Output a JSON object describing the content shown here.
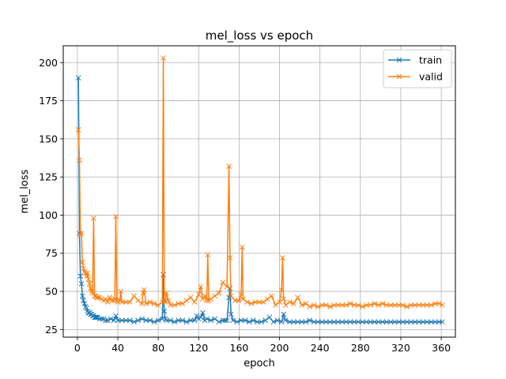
{
  "chart_data": {
    "type": "line",
    "title": "mel_loss vs epoch",
    "xlabel": "epoch",
    "ylabel": "mel_loss",
    "xlim": [
      -14,
      374
    ],
    "ylim": [
      20,
      211
    ],
    "xticks": [
      0,
      40,
      80,
      120,
      160,
      200,
      240,
      280,
      320,
      360
    ],
    "yticks": [
      25,
      50,
      75,
      100,
      125,
      150,
      175,
      200
    ],
    "grid": true,
    "legend": "top-right",
    "marker": "x",
    "series": [
      {
        "name": "train",
        "color": "#1f77b4",
        "x": [
          1,
          2,
          3,
          4,
          5,
          6,
          7,
          8,
          9,
          10,
          11,
          12,
          13,
          14,
          15,
          16,
          17,
          18,
          19,
          20,
          22,
          24,
          26,
          28,
          30,
          33,
          36,
          38,
          40,
          44,
          48,
          52,
          56,
          60,
          64,
          68,
          72,
          76,
          80,
          84,
          85,
          86,
          87,
          88,
          92,
          96,
          100,
          104,
          108,
          112,
          116,
          118,
          120,
          122,
          124,
          126,
          128,
          132,
          136,
          140,
          144,
          146,
          148,
          150,
          151,
          152,
          154,
          158,
          162,
          166,
          170,
          174,
          178,
          182,
          186,
          190,
          194,
          198,
          202,
          204,
          206,
          210,
          214,
          218,
          222,
          226,
          230,
          234,
          238,
          242,
          246,
          250,
          254,
          258,
          262,
          266,
          270,
          274,
          278,
          282,
          286,
          290,
          294,
          298,
          302,
          306,
          310,
          314,
          318,
          322,
          326,
          330,
          334,
          338,
          342,
          346,
          350,
          354,
          358,
          361
        ],
        "values": [
          190,
          88,
          60,
          55,
          47,
          44,
          42,
          40,
          39,
          37,
          36,
          36,
          35,
          35,
          34,
          34,
          33,
          33,
          33,
          33,
          32,
          32,
          32,
          31,
          31,
          32,
          31,
          34,
          31,
          31,
          31,
          31,
          30,
          31,
          32,
          31,
          31,
          30,
          31,
          32,
          61,
          37,
          32,
          31,
          31,
          30,
          31,
          31,
          30,
          31,
          31,
          34,
          32,
          33,
          36,
          31,
          32,
          31,
          32,
          30,
          31,
          31,
          31,
          46,
          52,
          35,
          31,
          30,
          31,
          31,
          30,
          31,
          30,
          30,
          31,
          33,
          30,
          31,
          30,
          35,
          31,
          30,
          30,
          30,
          30,
          30,
          31,
          30,
          30,
          30,
          30,
          30,
          30,
          30,
          30,
          30,
          30,
          30,
          30,
          30,
          30,
          30,
          30,
          30,
          30,
          30,
          30,
          30,
          30,
          30,
          30,
          30,
          30,
          30,
          30,
          30,
          30,
          30,
          30,
          30
        ]
      },
      {
        "name": "valid",
        "color": "#ff7f0e",
        "x": [
          1,
          2,
          3,
          4,
          5,
          6,
          7,
          8,
          9,
          10,
          11,
          12,
          13,
          14,
          15,
          16,
          17,
          18,
          19,
          20,
          22,
          24,
          26,
          28,
          30,
          32,
          34,
          36,
          37,
          38,
          39,
          40,
          42,
          43,
          44,
          48,
          52,
          56,
          60,
          64,
          65,
          66,
          68,
          72,
          76,
          80,
          84,
          85,
          86,
          87,
          88,
          90,
          92,
          96,
          100,
          104,
          108,
          112,
          116,
          120,
          122,
          124,
          126,
          128,
          129,
          130,
          132,
          136,
          140,
          144,
          148,
          150,
          151,
          152,
          156,
          160,
          162,
          163,
          164,
          168,
          172,
          176,
          180,
          184,
          188,
          192,
          196,
          200,
          202,
          203,
          204,
          206,
          210,
          214,
          218,
          222,
          226,
          230,
          234,
          238,
          242,
          246,
          250,
          254,
          258,
          262,
          266,
          270,
          274,
          278,
          282,
          286,
          290,
          294,
          298,
          302,
          306,
          310,
          314,
          318,
          322,
          326,
          330,
          334,
          338,
          342,
          346,
          350,
          354,
          358,
          361
        ],
        "values": [
          156,
          136,
          87,
          88,
          69,
          65,
          63,
          62,
          60,
          62,
          58,
          55,
          52,
          50,
          49,
          98,
          47,
          47,
          46,
          46,
          46,
          45,
          44,
          45,
          43,
          46,
          44,
          44,
          45,
          99,
          44,
          43,
          44,
          50,
          43,
          43,
          43,
          47,
          44,
          42,
          49,
          51,
          42,
          43,
          42,
          41,
          43,
          203,
          44,
          43,
          49,
          44,
          41,
          41,
          42,
          42,
          44,
          46,
          43,
          48,
          53,
          45,
          47,
          44,
          74,
          44,
          45,
          47,
          49,
          56,
          53,
          132,
          72,
          47,
          44,
          44,
          48,
          79,
          45,
          43,
          42,
          43,
          43,
          43,
          45,
          47,
          41,
          43,
          51,
          72,
          45,
          41,
          43,
          42,
          46,
          41,
          42,
          40,
          41,
          40,
          41,
          41,
          40,
          41,
          41,
          41,
          41,
          42,
          41,
          41,
          40,
          41,
          41,
          42,
          41,
          42,
          41,
          41,
          41,
          41,
          41,
          40,
          41,
          41,
          41,
          41,
          41,
          41,
          42,
          42,
          41
        ]
      }
    ]
  }
}
